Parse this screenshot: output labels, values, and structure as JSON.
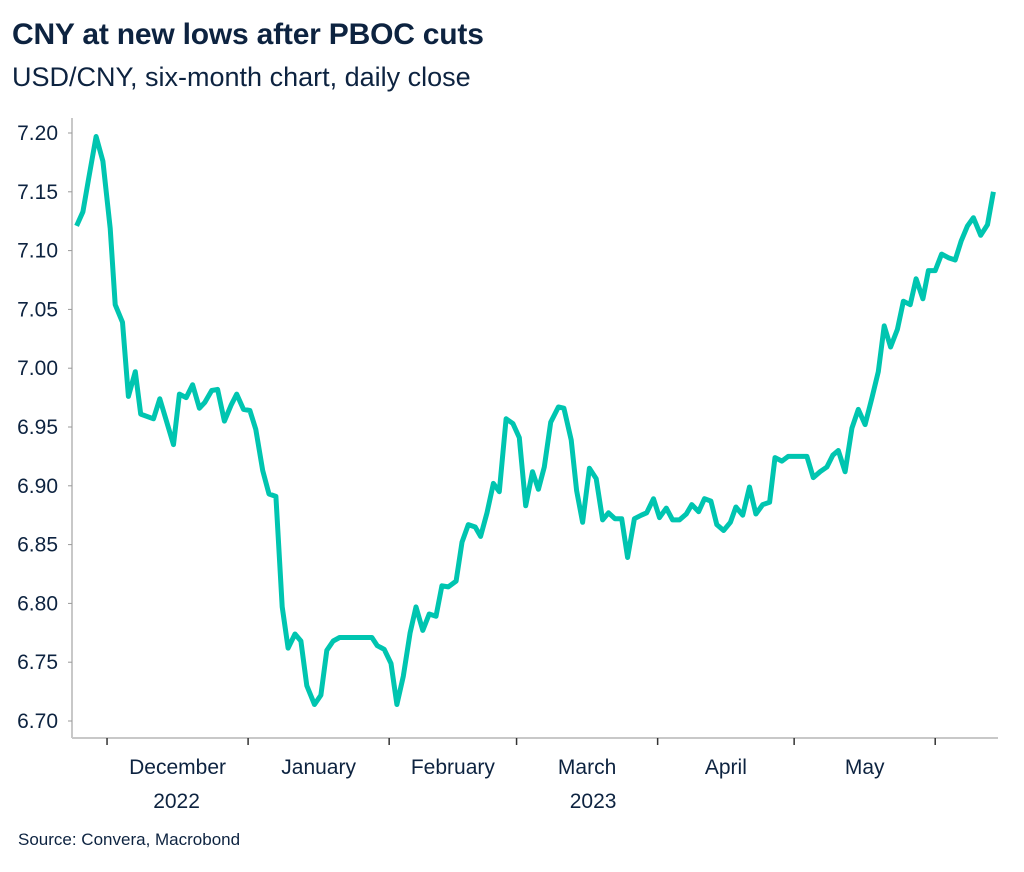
{
  "chart_data": {
    "type": "line",
    "title": "CNY at new lows after PBOC cuts",
    "subtitle": "USD/CNY, six-month chart, daily close",
    "source": "Source: Convera, Macrobond",
    "xlabel": "",
    "ylabel": "",
    "x_units": "days since 2022-12-01",
    "xlim": [
      -7.7,
      195.8
    ],
    "ylim": [
      6.7,
      7.2
    ],
    "yticks": [
      "6.70",
      "6.75",
      "6.80",
      "6.85",
      "6.90",
      "6.95",
      "7.00",
      "7.05",
      "7.10",
      "7.15",
      "7.20"
    ],
    "x_boundaries": [
      0,
      31,
      62,
      90,
      121,
      151,
      182
    ],
    "month_labels": [
      {
        "label": "December",
        "day": 15.5
      },
      {
        "label": "January",
        "day": 46.5
      },
      {
        "label": "February",
        "day": 76
      },
      {
        "label": "March",
        "day": 105.5
      },
      {
        "label": "April",
        "day": 136
      },
      {
        "label": "May",
        "day": 166.5
      }
    ],
    "year_labels": [
      {
        "label": "2022",
        "day": 15.5
      },
      {
        "label": "2023",
        "day": 105.5
      }
    ],
    "grid": false,
    "line_color": "#00c5b0",
    "series": [
      {
        "name": "USD/CNY",
        "x": [
          -6.7,
          -5.3,
          -4.1,
          -2.4,
          -0.9,
          0.7,
          1.8,
          3.4,
          4.7,
          6.2,
          7.4,
          10.2,
          11.6,
          14.6,
          15.9,
          17.4,
          18.8,
          20.3,
          21.5,
          23.0,
          24.3,
          25.8,
          27.3,
          28.5,
          30.0,
          31.4,
          32.7,
          34.2,
          35.6,
          37.1,
          38.5,
          39.8,
          41.3,
          42.6,
          43.9,
          45.6,
          47.0,
          48.3,
          49.7,
          51.1,
          58.2,
          59.4,
          60.9,
          62.4,
          63.7,
          65.1,
          66.6,
          67.9,
          69.4,
          70.8,
          72.3,
          73.6,
          75.0,
          76.7,
          78.0,
          79.4,
          80.9,
          82.1,
          83.5,
          84.9,
          86.2,
          87.7,
          89.2,
          90.6,
          92.0,
          93.5,
          94.8,
          96.1,
          97.5,
          99.2,
          100.4,
          102.0,
          103.2,
          104.5,
          106.0,
          107.5,
          108.9,
          110.2,
          111.6,
          113.1,
          114.4,
          115.9,
          117.4,
          118.6,
          120.1,
          121.4,
          122.9,
          124.3,
          125.8,
          127.3,
          128.5,
          130.0,
          131.3,
          132.7,
          134.0,
          135.5,
          137.0,
          138.2,
          139.7,
          141.2,
          142.6,
          144.1,
          145.6,
          146.8,
          148.3,
          149.7,
          153.8,
          155.2,
          156.7,
          158.2,
          159.5,
          160.7,
          162.2,
          163.7,
          165.1,
          166.6,
          168.1,
          169.5,
          170.8,
          172.2,
          173.7,
          175.0,
          176.5,
          177.8,
          179.3,
          180.5,
          182.0,
          183.4,
          184.9,
          186.4,
          187.7,
          189.1,
          190.4,
          192.0,
          193.5,
          194.8
        ],
        "values": [
          7.121,
          7.133,
          7.16,
          7.197,
          7.176,
          7.119,
          7.054,
          7.039,
          6.976,
          6.997,
          6.961,
          6.957,
          6.974,
          6.935,
          6.978,
          6.975,
          6.986,
          6.966,
          6.971,
          6.981,
          6.982,
          6.955,
          6.969,
          6.978,
          6.965,
          6.964,
          6.948,
          6.913,
          6.893,
          6.891,
          6.797,
          6.762,
          6.774,
          6.768,
          6.73,
          6.714,
          6.722,
          6.76,
          6.768,
          6.771,
          6.771,
          6.764,
          6.761,
          6.749,
          6.714,
          6.738,
          6.775,
          6.797,
          6.777,
          6.791,
          6.789,
          6.815,
          6.814,
          6.819,
          6.852,
          6.867,
          6.865,
          6.857,
          6.877,
          6.902,
          6.895,
          6.957,
          6.953,
          6.941,
          6.883,
          6.912,
          6.897,
          6.916,
          6.954,
          6.967,
          6.966,
          6.939,
          6.896,
          6.869,
          6.915,
          6.906,
          6.871,
          6.877,
          6.872,
          6.872,
          6.839,
          6.872,
          6.875,
          6.877,
          6.889,
          6.873,
          6.881,
          6.871,
          6.871,
          6.876,
          6.884,
          6.878,
          6.889,
          6.887,
          6.867,
          6.862,
          6.869,
          6.882,
          6.875,
          6.899,
          6.876,
          6.884,
          6.886,
          6.924,
          6.921,
          6.925,
          6.925,
          6.907,
          6.912,
          6.916,
          6.926,
          6.93,
          6.912,
          6.949,
          6.965,
          6.952,
          6.975,
          6.997,
          7.036,
          7.018,
          7.033,
          7.057,
          7.054,
          7.076,
          7.059,
          7.083,
          7.083,
          7.097,
          7.094,
          7.092,
          7.108,
          7.121,
          7.128,
          7.113,
          7.122,
          7.15
        ]
      }
    ]
  }
}
